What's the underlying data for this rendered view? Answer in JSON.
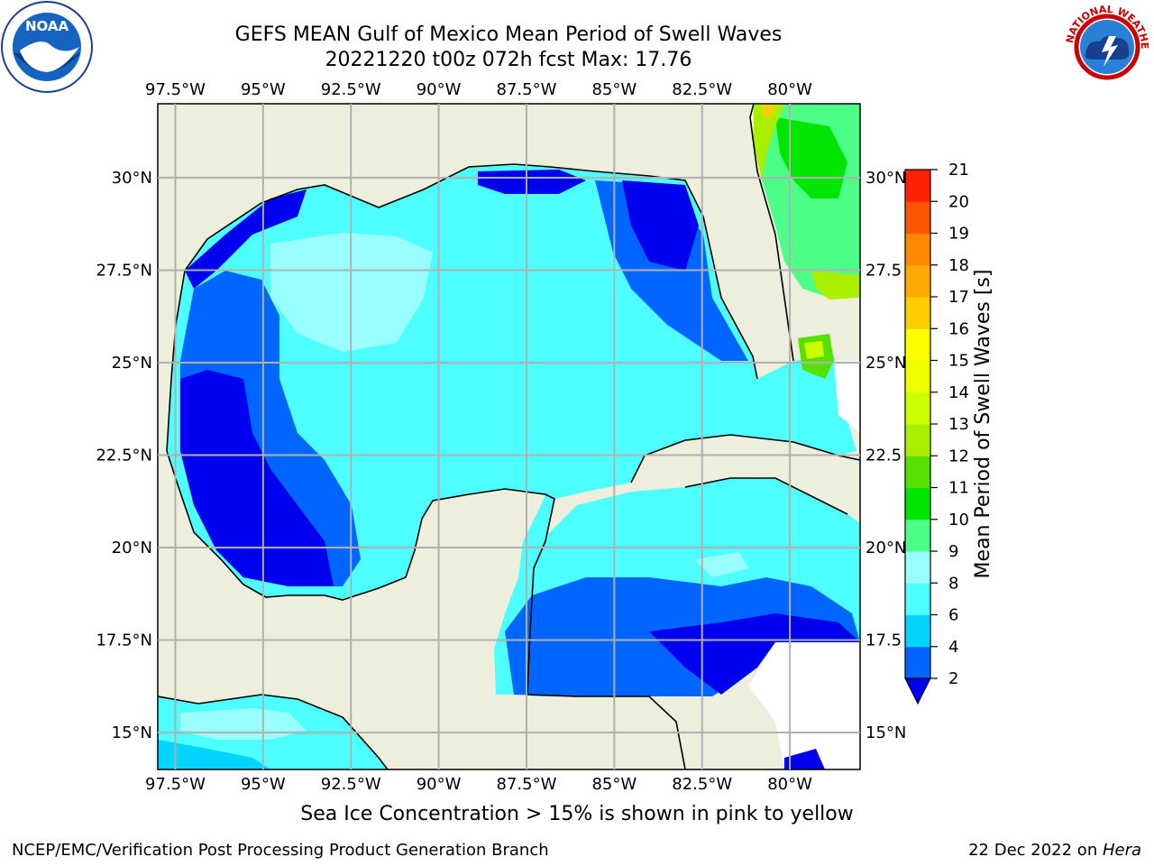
{
  "title": "GEFS MEAN Gulf of Mexico Mean Period of Swell Waves",
  "subtitle": "20221220 t00z 072h fcst   Max: 17.76",
  "note": "Sea Ice Concentration > 15% is shown in pink to yellow",
  "footer_left": "NCEP/EMC/Verification Post Processing Product Generation Branch",
  "footer_right_date": "22 Dec 2022 on ",
  "footer_right_host": "Hera",
  "logos": {
    "left": "noaa-logo",
    "right": "nws-logo"
  },
  "map": {
    "lon_labels": [
      "97.5°W",
      "95°W",
      "92.5°W",
      "90°W",
      "87.5°W",
      "85°W",
      "82.5°W",
      "80°W"
    ],
    "lon_values": [
      -97.5,
      -95,
      -92.5,
      -90,
      -87.5,
      -85,
      -82.5,
      -80
    ],
    "lat_labels_left": [
      "30°N",
      "27.5°N",
      "25°N",
      "22.5°N",
      "20°N",
      "17.5°N",
      "15°N"
    ],
    "lat_labels_right": [
      "30°N",
      "27.5",
      "25°N",
      "22.5",
      "20°N",
      "17.5",
      "15°N"
    ],
    "lat_values": [
      30,
      27.5,
      25,
      22.5,
      20,
      17.5,
      15
    ],
    "extent": {
      "lon_min": -98,
      "lon_max": -78,
      "lat_min": 14,
      "lat_max": 32
    },
    "land_color": "#eeeedc",
    "grid_color": "#b0b0b0"
  },
  "colorbar": {
    "label": "Mean Period of Swell Waves [s]",
    "tick_labels": [
      "2",
      "4",
      "6",
      "8",
      "9",
      "10",
      "11",
      "12",
      "13",
      "14",
      "15",
      "16",
      "17",
      "18",
      "19",
      "20",
      "21"
    ],
    "bounds": [
      2,
      4,
      6,
      8,
      9,
      10,
      11,
      12,
      13,
      14,
      15,
      16,
      17,
      18,
      19,
      20,
      21
    ],
    "colors": [
      "#0066ff",
      "#00d4ff",
      "#4dffff",
      "#99ffff",
      "#4dff88",
      "#00e600",
      "#55e000",
      "#aaee00",
      "#ccff00",
      "#eeff00",
      "#ffff00",
      "#ffcc00",
      "#ffaa00",
      "#ff8800",
      "#ff5500",
      "#ff2200"
    ],
    "under_color": "#0000ee"
  }
}
